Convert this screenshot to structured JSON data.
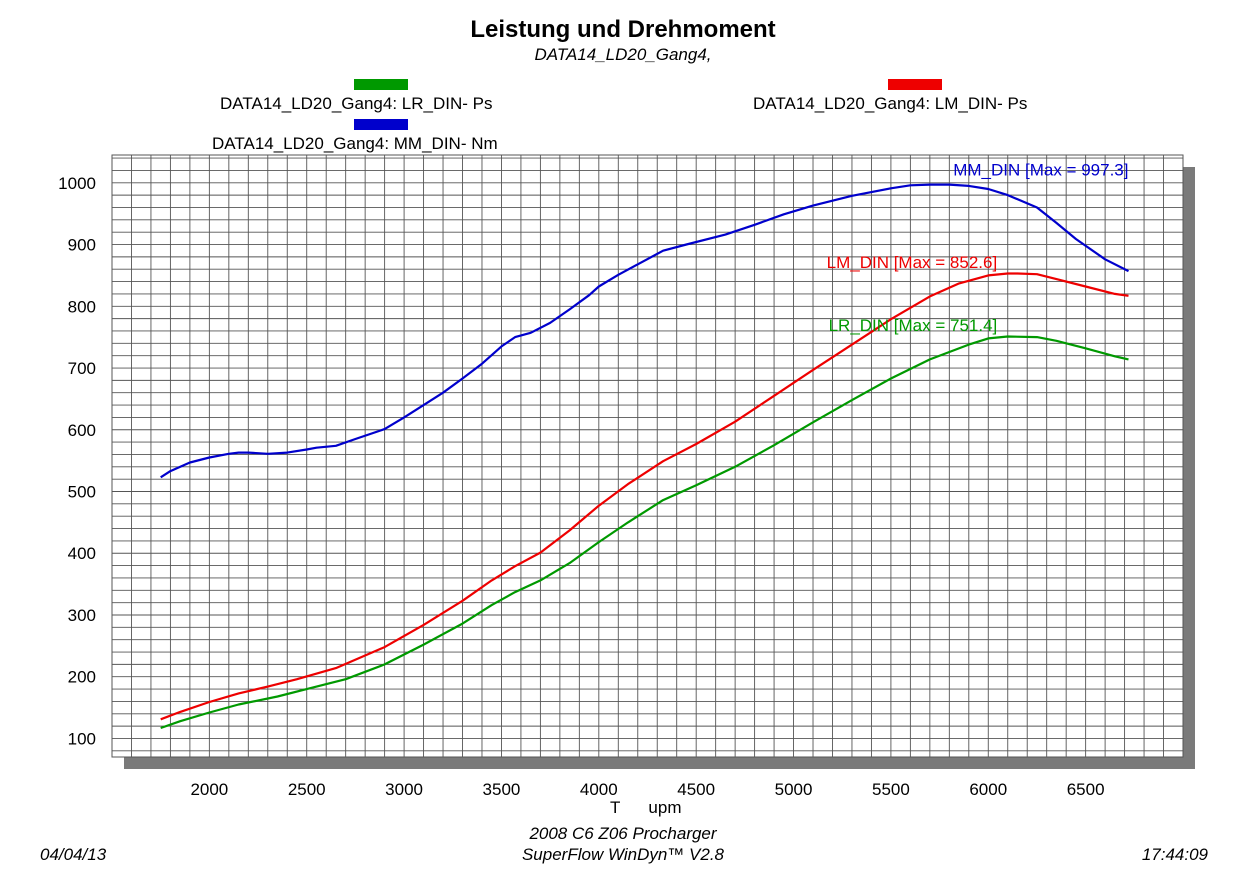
{
  "header": {
    "title": "Leistung und Drehmoment",
    "subtitle": "DATA14_LD20_Gang4,"
  },
  "legend": [
    {
      "label": "DATA14_LD20_Gang4: LR_DIN-  Ps",
      "color": "#009900"
    },
    {
      "label": "DATA14_LD20_Gang4: LM_DIN-  Ps",
      "color": "#ee0000"
    },
    {
      "label": "DATA14_LD20_Gang4: MM_DIN-  Nm",
      "color": "#0000cc"
    }
  ],
  "footer": {
    "line1": "2008 C6 Z06 Procharger",
    "line2": "SuperFlow WinDyn™ V2.8",
    "date": "04/04/13",
    "time": "17:44:09"
  },
  "chart_data": {
    "type": "line",
    "title": "Leistung und Drehmoment",
    "subtitle": "DATA14_LD20_Gang4,",
    "xlabel": "T      upm",
    "ylabel": "",
    "xlim": [
      1500,
      7000
    ],
    "ylim": [
      70,
      1045
    ],
    "x_ticks": [
      2000,
      2500,
      3000,
      3500,
      4000,
      4500,
      5000,
      5500,
      6000,
      6500
    ],
    "y_ticks": [
      100,
      200,
      300,
      400,
      500,
      600,
      700,
      800,
      900,
      1000
    ],
    "grid": true,
    "legend_position": "top",
    "series": [
      {
        "name": "DATA14_LD20_Gang4: MM_DIN-  Nm",
        "color": "#0000cc",
        "annotation": "MM_DIN [Max = 997.3]",
        "x": [
          1750,
          1800,
          1900,
          2000,
          2100,
          2150,
          2200,
          2300,
          2400,
          2500,
          2550,
          2650,
          2750,
          2900,
          3000,
          3100,
          3200,
          3300,
          3400,
          3500,
          3570,
          3650,
          3750,
          3850,
          3950,
          4000,
          4100,
          4200,
          4330,
          4450,
          4650,
          4800,
          4950,
          5100,
          5300,
          5500,
          5600,
          5700,
          5800,
          5900,
          6000,
          6100,
          6250,
          6350,
          6450,
          6600,
          6720
        ],
        "y": [
          523,
          533,
          547,
          555,
          561,
          563,
          563,
          561,
          563,
          568,
          571,
          574,
          585,
          601,
          620,
          640,
          660,
          683,
          707,
          735,
          750,
          757,
          773,
          795,
          818,
          832,
          851,
          868,
          890,
          900,
          916,
          932,
          949,
          963,
          979,
          991,
          996,
          997,
          997,
          995,
          990,
          980,
          960,
          935,
          909,
          876,
          857
        ]
      },
      {
        "name": "DATA14_LD20_Gang4: LM_DIN-  Ps",
        "color": "#ee0000",
        "annotation": "LM_DIN [Max = 852.6]",
        "x": [
          1750,
          1850,
          2000,
          2150,
          2300,
          2450,
          2650,
          2900,
          3100,
          3300,
          3450,
          3570,
          3700,
          3850,
          4000,
          4150,
          4330,
          4500,
          4700,
          4900,
          5100,
          5300,
          5500,
          5700,
          5850,
          6000,
          6100,
          6150,
          6250,
          6350,
          6500,
          6650,
          6720
        ],
        "y": [
          131,
          143,
          159,
          173,
          184,
          196,
          214,
          248,
          284,
          323,
          356,
          379,
          401,
          437,
          477,
          512,
          549,
          577,
          613,
          655,
          697,
          738,
          779,
          816,
          837,
          850,
          853,
          853,
          852,
          844,
          832,
          820,
          817
        ]
      },
      {
        "name": "DATA14_LD20_Gang4: LR_DIN-  Ps",
        "color": "#009900",
        "annotation": "LR_DIN [Max = 751.4]",
        "x": [
          1750,
          1850,
          2000,
          2150,
          2350,
          2500,
          2700,
          2900,
          3100,
          3300,
          3450,
          3570,
          3700,
          3850,
          4000,
          4150,
          4330,
          4500,
          4700,
          4900,
          5100,
          5300,
          5500,
          5700,
          5900,
          6000,
          6100,
          6250,
          6350,
          6500,
          6650,
          6720
        ],
        "y": [
          117,
          128,
          142,
          155,
          168,
          180,
          196,
          220,
          252,
          286,
          316,
          337,
          356,
          384,
          418,
          450,
          486,
          510,
          540,
          575,
          612,
          648,
          683,
          714,
          738,
          748,
          751,
          750,
          744,
          732,
          719,
          714
        ]
      }
    ]
  }
}
